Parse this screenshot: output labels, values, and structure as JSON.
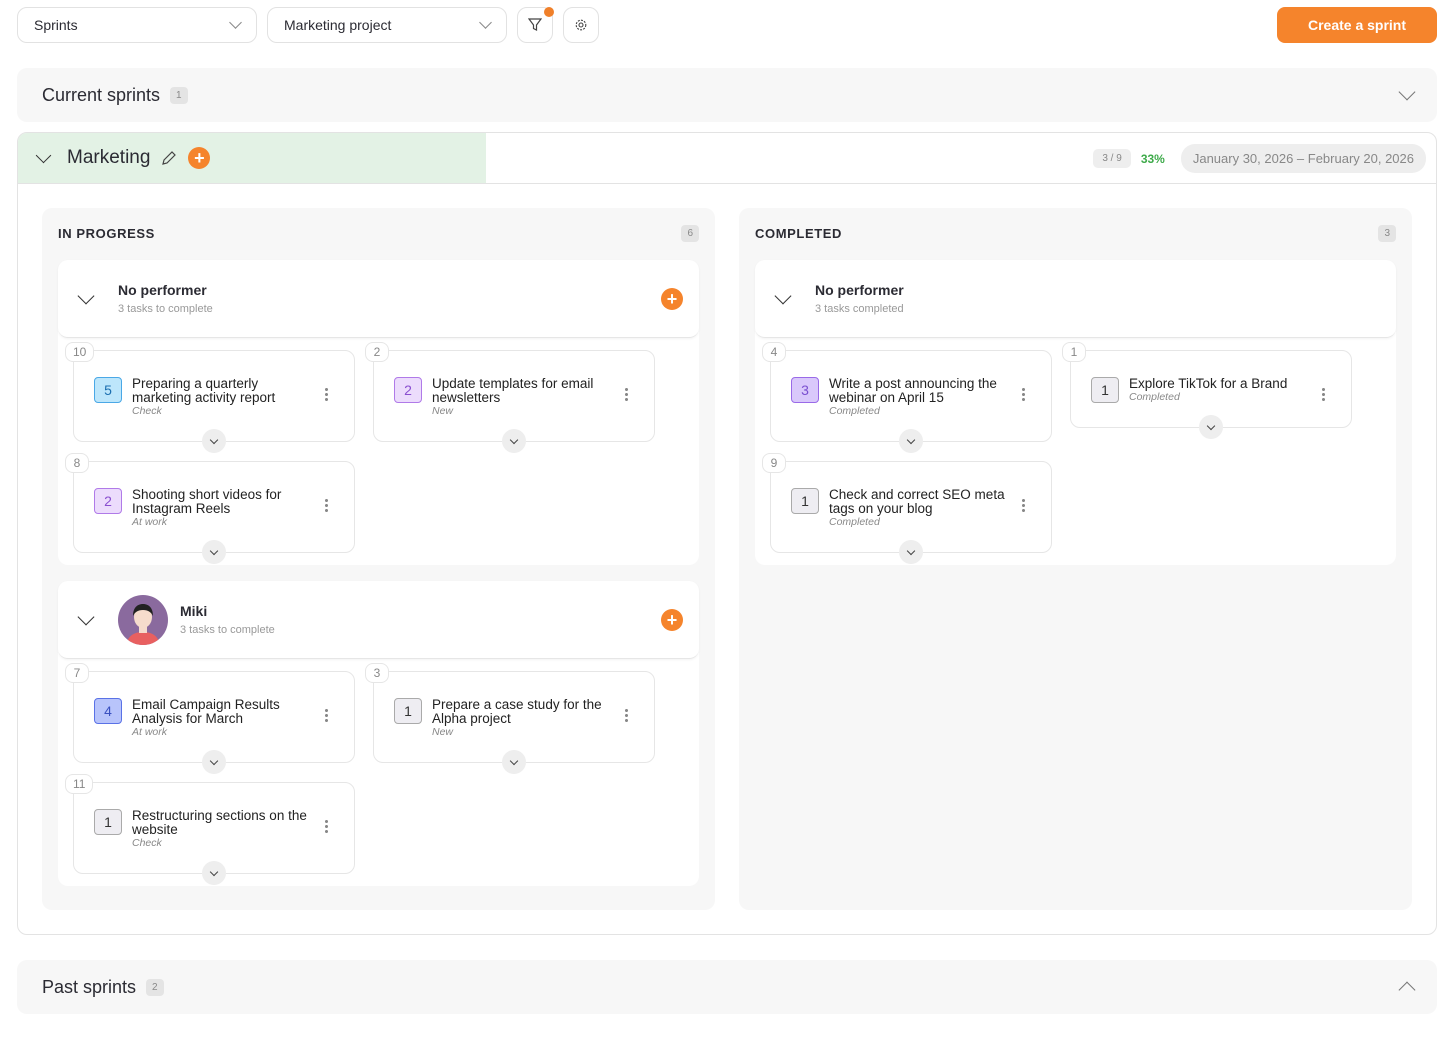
{
  "toolbar": {
    "view_select": "Sprints",
    "project_select": "Marketing project",
    "create_label": "Create a sprint",
    "filter_active": true,
    "accent": "#f5842c"
  },
  "current": {
    "label": "Current sprints",
    "count": "1"
  },
  "sprint": {
    "name": "Marketing",
    "ratio": "3 / 9",
    "percent": "33%",
    "dates": "January 30, 2026 – February 20, 2026"
  },
  "columns": [
    {
      "title": "IN PROGRESS",
      "count": "6",
      "groups": [
        {
          "name": "No performer",
          "sub": "3 tasks to complete",
          "avatar": false,
          "add": true,
          "tasks": [
            {
              "id": "10",
              "points": "5",
              "color": "b-blue",
              "title": "Preparing a quarterly marketing activity report",
              "status": "Check"
            },
            {
              "id": "2",
              "points": "2",
              "color": "b-purple",
              "title": "Update templates for email newsletters",
              "status": "New"
            },
            {
              "id": "8",
              "points": "2",
              "color": "b-purple",
              "title": "Shooting short videos for Instagram Reels",
              "status": "At work"
            }
          ]
        },
        {
          "name": "Miki",
          "sub": "3 tasks to complete",
          "avatar": true,
          "add": true,
          "tasks": [
            {
              "id": "7",
              "points": "4",
              "color": "b-indigo",
              "title": "Email Campaign Results Analysis for March",
              "status": "At work"
            },
            {
              "id": "3",
              "points": "1",
              "color": "b-gray",
              "title": "Prepare a case study for the Alpha project",
              "status": "New"
            },
            {
              "id": "11",
              "points": "1",
              "color": "b-gray",
              "title": "Restructuring sections on the website",
              "status": "Check"
            }
          ]
        }
      ]
    },
    {
      "title": "COMPLETED",
      "count": "3",
      "groups": [
        {
          "name": "No performer",
          "sub": "3 tasks completed",
          "avatar": false,
          "add": false,
          "tasks": [
            {
              "id": "4",
              "points": "3",
              "color": "b-purple2",
              "title": "Write a post announcing the webinar on April 15",
              "status": "Completed"
            },
            {
              "id": "1",
              "points": "1",
              "color": "b-gray",
              "title": "Explore TikTok for a Brand",
              "status": "Completed"
            },
            {
              "id": "9",
              "points": "1",
              "color": "b-gray",
              "title": "Check and correct SEO meta tags on your blog",
              "status": "Completed"
            }
          ]
        }
      ]
    }
  ],
  "past": {
    "label": "Past sprints",
    "count": "2"
  }
}
